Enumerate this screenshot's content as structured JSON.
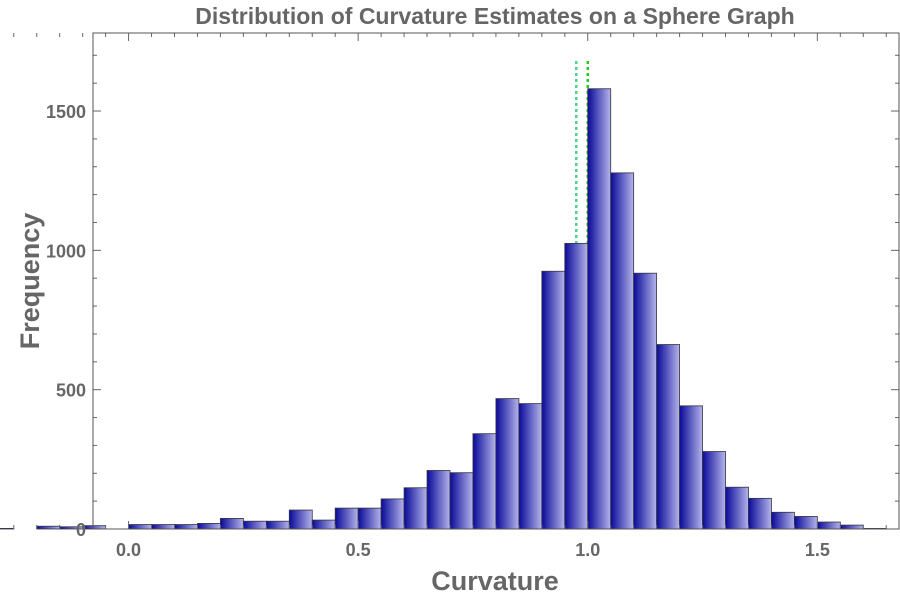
{
  "chart_data": {
    "type": "bar",
    "title": "Distribution of Curvature Estimates on a Sphere Graph",
    "xlabel": "Curvature",
    "ylabel": "Frequency",
    "xlim": [
      -0.28,
      1.68
    ],
    "ylim": [
      0,
      1780
    ],
    "bin_width": 0.05,
    "bins": [
      {
        "start": -0.3,
        "count": 2
      },
      {
        "start": -0.2,
        "count": 10
      },
      {
        "start": -0.15,
        "count": 8
      },
      {
        "start": -0.1,
        "count": 12
      },
      {
        "start": 0.0,
        "count": 16
      },
      {
        "start": 0.05,
        "count": 16
      },
      {
        "start": 0.1,
        "count": 16
      },
      {
        "start": 0.15,
        "count": 20
      },
      {
        "start": 0.2,
        "count": 38
      },
      {
        "start": 0.25,
        "count": 28
      },
      {
        "start": 0.3,
        "count": 28
      },
      {
        "start": 0.35,
        "count": 68
      },
      {
        "start": 0.4,
        "count": 32
      },
      {
        "start": 0.45,
        "count": 75
      },
      {
        "start": 0.5,
        "count": 75
      },
      {
        "start": 0.55,
        "count": 108
      },
      {
        "start": 0.6,
        "count": 148
      },
      {
        "start": 0.65,
        "count": 210
      },
      {
        "start": 0.7,
        "count": 202
      },
      {
        "start": 0.75,
        "count": 342
      },
      {
        "start": 0.8,
        "count": 468
      },
      {
        "start": 0.85,
        "count": 450
      },
      {
        "start": 0.9,
        "count": 925
      },
      {
        "start": 0.95,
        "count": 1025
      },
      {
        "start": 1.0,
        "count": 1580
      },
      {
        "start": 1.05,
        "count": 1278
      },
      {
        "start": 1.1,
        "count": 918
      },
      {
        "start": 1.15,
        "count": 662
      },
      {
        "start": 1.2,
        "count": 442
      },
      {
        "start": 1.25,
        "count": 278
      },
      {
        "start": 1.3,
        "count": 150
      },
      {
        "start": 1.35,
        "count": 110
      },
      {
        "start": 1.4,
        "count": 60
      },
      {
        "start": 1.45,
        "count": 45
      },
      {
        "start": 1.5,
        "count": 25
      },
      {
        "start": 1.55,
        "count": 14
      },
      {
        "start": 1.6,
        "count": 2
      }
    ],
    "reference_lines": [
      {
        "x": 0.975,
        "color": "#4ad38a"
      },
      {
        "x": 1.0,
        "color": "#22cc22"
      }
    ],
    "x_ticks": [
      0.0,
      0.5,
      1.0,
      1.5
    ],
    "x_tick_labels": [
      "0.0",
      "0.5",
      "1.0",
      "1.5"
    ],
    "y_ticks": [
      0,
      500,
      1000,
      1500
    ],
    "y_tick_labels": [
      "0",
      "500",
      "1000",
      "1500"
    ],
    "grid": false,
    "colors": {
      "bar_dark": "#0a0a9a",
      "bar_light": "#b4b4ea",
      "text": "#666666"
    }
  }
}
